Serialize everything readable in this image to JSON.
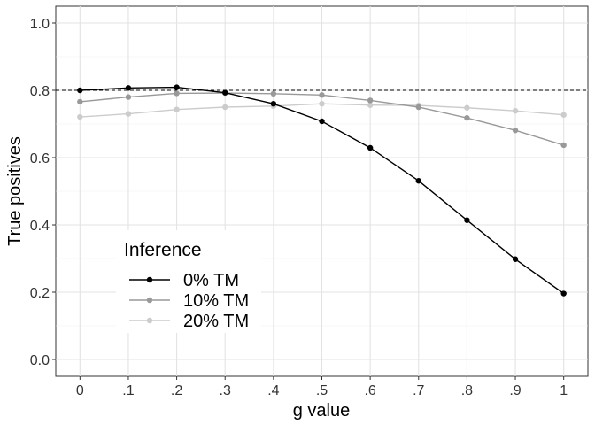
{
  "chart_data": {
    "type": "line",
    "x": [
      0,
      0.1,
      0.2,
      0.3,
      0.4,
      0.5,
      0.6,
      0.7,
      0.8,
      0.9,
      1.0
    ],
    "x_tick_labels": [
      "0",
      ".1",
      ".2",
      ".3",
      ".4",
      ".5",
      ".6",
      ".7",
      ".8",
      ".9",
      "1"
    ],
    "xlabel": "g value",
    "ylabel": "True positives",
    "xlim": [
      -0.05,
      1.05
    ],
    "ylim": [
      -0.05,
      1.05
    ],
    "y_ticks": [
      0.0,
      0.2,
      0.4,
      0.6,
      0.8,
      1.0
    ],
    "y_tick_labels": [
      "0.0",
      "0.2",
      "0.4",
      "0.6",
      "0.8",
      "1.0"
    ],
    "grid": true,
    "reference_line": {
      "y": 0.8,
      "style": "dashed"
    },
    "legend": {
      "title": "Inference",
      "placement": "bottom-left inside"
    },
    "series": [
      {
        "name": "0% TM",
        "color": "#000000",
        "values": [
          0.8,
          0.807,
          0.809,
          0.793,
          0.76,
          0.708,
          0.629,
          0.531,
          0.414,
          0.298,
          0.196
        ]
      },
      {
        "name": "10% TM",
        "color": "#999999",
        "values": [
          0.766,
          0.78,
          0.791,
          0.792,
          0.79,
          0.786,
          0.77,
          0.75,
          0.718,
          0.681,
          0.637
        ]
      },
      {
        "name": "20% TM",
        "color": "#cccccc",
        "values": [
          0.721,
          0.73,
          0.743,
          0.75,
          0.753,
          0.76,
          0.756,
          0.755,
          0.748,
          0.739,
          0.727
        ]
      }
    ]
  }
}
